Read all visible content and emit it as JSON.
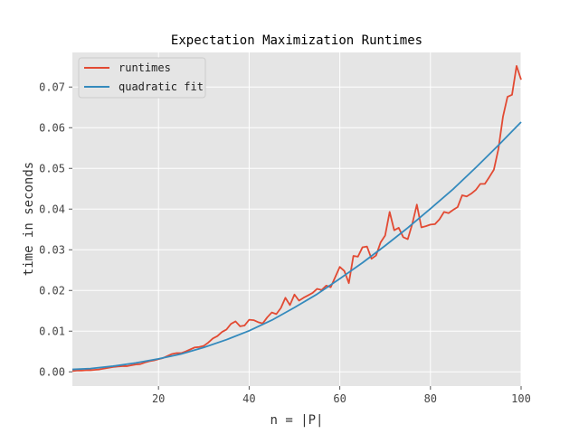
{
  "chart_data": {
    "type": "line",
    "title": "Expectation Maximization Runtimes",
    "xlabel": "n = |P|",
    "ylabel": "time in seconds",
    "xlim": [
      1,
      100
    ],
    "ylim": [
      -0.0035,
      0.0785
    ],
    "xticks": [
      20,
      40,
      60,
      80,
      100
    ],
    "yticks": [
      0.0,
      0.01,
      0.02,
      0.03,
      0.04,
      0.05,
      0.06,
      0.07
    ],
    "ytick_labels": [
      "0.00",
      "0.01",
      "0.02",
      "0.03",
      "0.04",
      "0.05",
      "0.06",
      "0.07"
    ],
    "grid": true,
    "legend_position": "top-left",
    "colors": {
      "runtimes": "#e24a33",
      "quadratic_fit": "#348abd",
      "background": "#e5e5e5",
      "grid": "#ffffff"
    },
    "series": [
      {
        "name": "runtimes",
        "x": [
          1,
          2,
          3,
          4,
          5,
          6,
          7,
          8,
          9,
          10,
          11,
          12,
          13,
          14,
          15,
          16,
          17,
          18,
          19,
          20,
          21,
          22,
          23,
          24,
          25,
          26,
          27,
          28,
          29,
          30,
          31,
          32,
          33,
          34,
          35,
          36,
          37,
          38,
          39,
          40,
          41,
          42,
          43,
          44,
          45,
          46,
          47,
          48,
          49,
          50,
          51,
          52,
          53,
          54,
          55,
          56,
          57,
          58,
          59,
          60,
          61,
          62,
          63,
          64,
          65,
          66,
          67,
          68,
          69,
          70,
          71,
          72,
          73,
          74,
          75,
          76,
          77,
          78,
          79,
          80,
          81,
          82,
          83,
          84,
          85,
          86,
          87,
          88,
          89,
          90,
          91,
          92,
          93,
          94,
          95,
          96,
          97,
          98,
          99,
          100
        ],
        "y": [
          0.0002,
          0.0003,
          0.0003,
          0.0004,
          0.0004,
          0.0005,
          0.0006,
          0.0008,
          0.001,
          0.0012,
          0.0013,
          0.0014,
          0.0014,
          0.0016,
          0.0018,
          0.0019,
          0.0023,
          0.0026,
          0.0028,
          0.0031,
          0.0034,
          0.0039,
          0.0044,
          0.0046,
          0.0046,
          0.005,
          0.0055,
          0.006,
          0.0061,
          0.0064,
          0.0072,
          0.0082,
          0.0088,
          0.0098,
          0.0104,
          0.0118,
          0.0124,
          0.0112,
          0.0114,
          0.0128,
          0.0127,
          0.0122,
          0.0119,
          0.0134,
          0.0146,
          0.0142,
          0.0157,
          0.0182,
          0.0164,
          0.019,
          0.0175,
          0.0182,
          0.0188,
          0.0194,
          0.0204,
          0.0201,
          0.0212,
          0.0208,
          0.0233,
          0.0258,
          0.0248,
          0.0218,
          0.0285,
          0.0283,
          0.0306,
          0.0308,
          0.0278,
          0.0286,
          0.0318,
          0.0335,
          0.0393,
          0.0348,
          0.0354,
          0.0331,
          0.0326,
          0.0364,
          0.0411,
          0.0355,
          0.0358,
          0.0362,
          0.0363,
          0.0375,
          0.0393,
          0.039,
          0.0398,
          0.0405,
          0.0434,
          0.0431,
          0.0438,
          0.0447,
          0.0462,
          0.0462,
          0.0479,
          0.0497,
          0.0548,
          0.0627,
          0.0676,
          0.0681,
          0.0752,
          0.0718
        ]
      },
      {
        "name": "quadratic fit",
        "x": [
          1,
          5,
          10,
          15,
          20,
          25,
          30,
          35,
          40,
          45,
          50,
          55,
          60,
          65,
          70,
          75,
          80,
          85,
          90,
          95,
          100
        ],
        "y": [
          0.0006,
          0.0008,
          0.0014,
          0.0022,
          0.0032,
          0.0044,
          0.006,
          0.0079,
          0.0101,
          0.0127,
          0.0158,
          0.0191,
          0.0229,
          0.0268,
          0.031,
          0.0354,
          0.0401,
          0.0449,
          0.0502,
          0.0557,
          0.0614
        ]
      }
    ]
  }
}
